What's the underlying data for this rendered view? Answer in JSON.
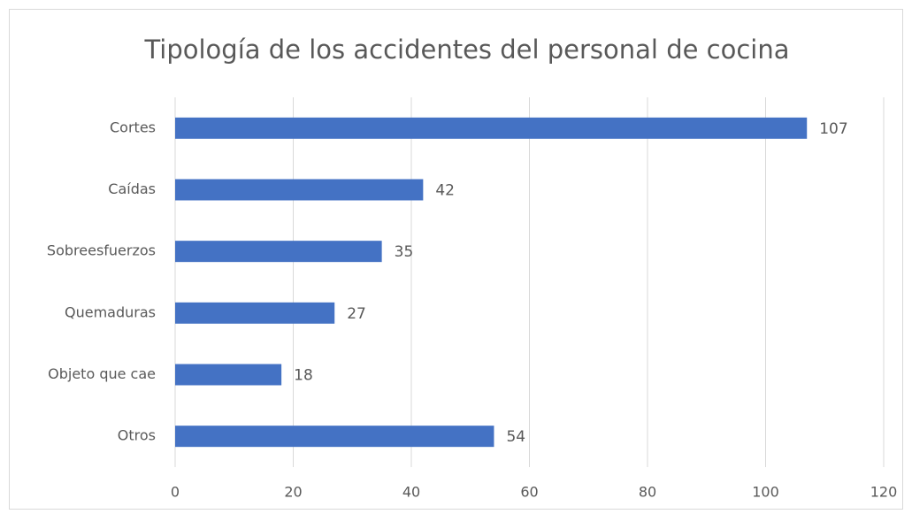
{
  "chart_data": {
    "type": "bar",
    "orientation": "horizontal",
    "title": "Tipología de los accidentes del personal de cocina",
    "categories": [
      "Cortes",
      "Caídas",
      "Sobreesfuerzos",
      "Quemaduras",
      "Objeto que cae",
      "Otros"
    ],
    "values": [
      107,
      42,
      35,
      27,
      18,
      54
    ],
    "color": "#4472c4",
    "xlim": [
      0,
      120
    ],
    "xticks": [
      0,
      20,
      40,
      60,
      80,
      100,
      120
    ],
    "grid": true
  }
}
